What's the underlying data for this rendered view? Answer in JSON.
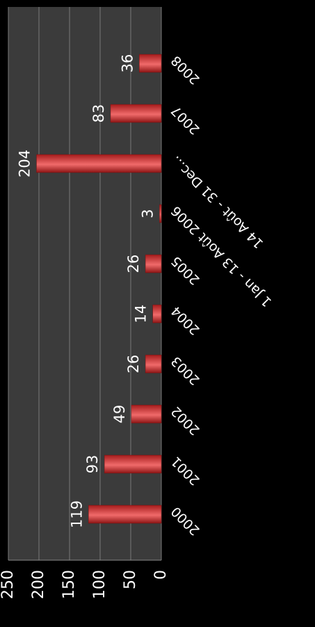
{
  "chart_data": {
    "type": "bar",
    "categories": [
      "2000",
      "2001",
      "2002",
      "2003",
      "2004",
      "2005",
      "1 Jan - 13 Août 2006",
      "14 Août - 31 Dec...",
      "2007",
      "2008"
    ],
    "values": [
      119,
      93,
      49,
      26,
      14,
      26,
      3,
      204,
      83,
      36
    ],
    "color": "#d62f2f",
    "ylim": [
      0,
      250
    ],
    "yticks": [
      0,
      50,
      100,
      150,
      200,
      250
    ],
    "grid": true
  }
}
